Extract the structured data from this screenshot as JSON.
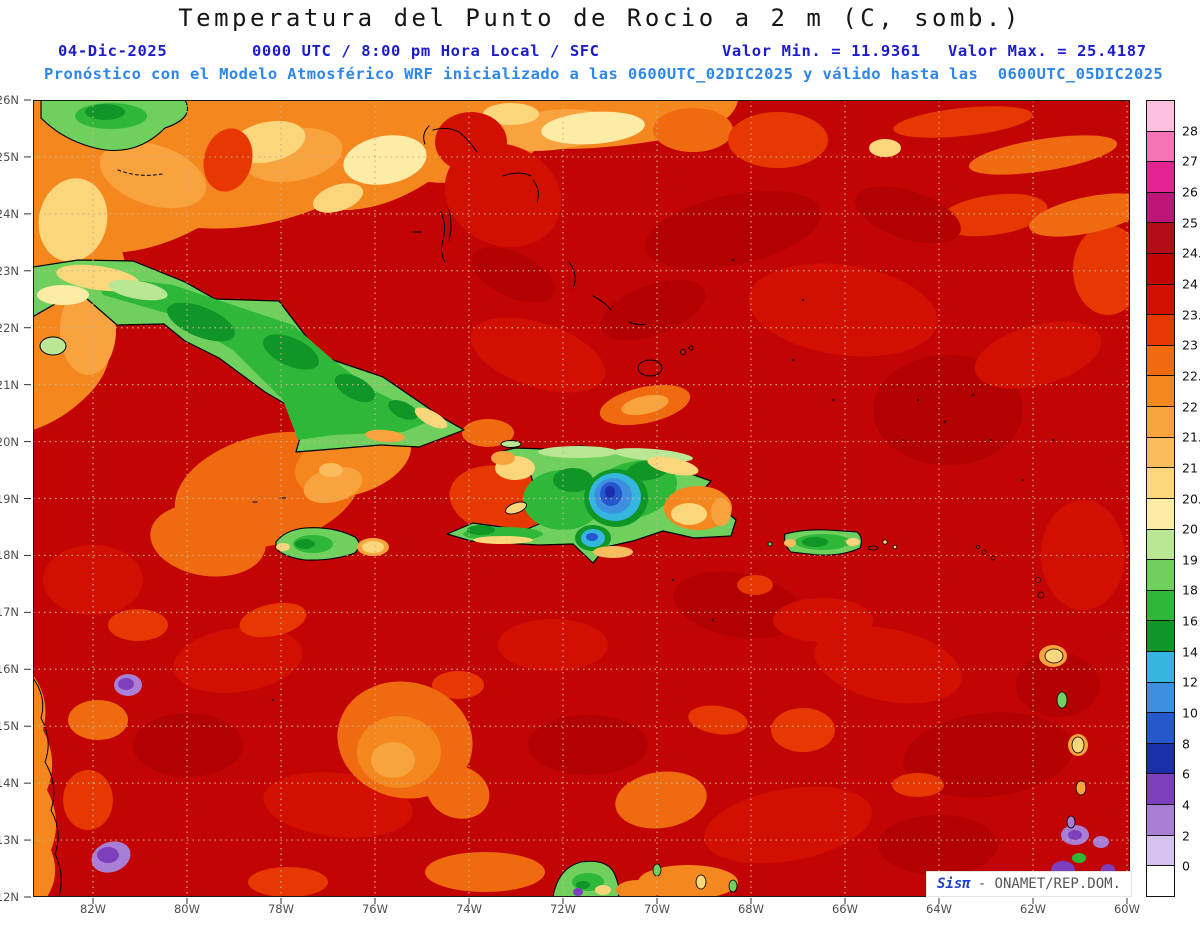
{
  "header": {
    "title": "Temperatura del Punto de Rocio a 2 m (C, somb.)",
    "date": "04-Dic-2025",
    "time": "0000 UTC / 8:00 pm Hora Local / SFC",
    "value_min": "Valor Min. = 11.9361",
    "value_max": "Valor Max. = 25.4187",
    "model_line": "Pronóstico con el Modelo Atmosférico WRF inicializado a las 0600UTC_02DIC2025 y válido hasta las  0600UTC_05DIC2025"
  },
  "map": {
    "lat_labels": [
      "26N",
      "25N",
      "24N",
      "23N",
      "22N",
      "21N",
      "20N",
      "19N",
      "18N",
      "17N",
      "16N",
      "15N",
      "14N",
      "13N",
      "12N"
    ],
    "lon_labels": [
      "82W",
      "80W",
      "78W",
      "76W",
      "74W",
      "72W",
      "70W",
      "68W",
      "66W",
      "64W",
      "62W",
      "60W"
    ]
  },
  "colorbar": {
    "labels": [
      "28",
      "27",
      "26",
      "25",
      "24.5",
      "24",
      "23.5",
      "23",
      "22.5",
      "22",
      "21.5",
      "21",
      "20.5",
      "20",
      "19",
      "18",
      "16",
      "14",
      "12",
      "10",
      "8",
      "6",
      "4",
      "2",
      "0"
    ],
    "colors": [
      "#fbc0dd",
      "#f573b8",
      "#e42290",
      "#bd1677",
      "#b50d15",
      "#c20404",
      "#d21002",
      "#e73801",
      "#f06a10",
      "#f5871f",
      "#f9a33e",
      "#fbbc5d",
      "#fbd67b",
      "#fdeca6",
      "#b9e793",
      "#6fd05d",
      "#2fb73a",
      "#0f9626",
      "#35b6e0",
      "#3f8fe0",
      "#2458cc",
      "#1b2fa8",
      "#7e3fbd",
      "#a97fd6",
      "#d5c2ee",
      "#ffffff"
    ]
  },
  "watermark": {
    "brand": "Sisπ",
    "text": "- ONAMET/REP.DOM."
  },
  "colors": {
    "sea_base": "#c20404",
    "grid": "#cdb292",
    "tick": "#333333",
    "subtitle_blue": "#1c1ccd",
    "model_blue": "#2e86e8"
  }
}
